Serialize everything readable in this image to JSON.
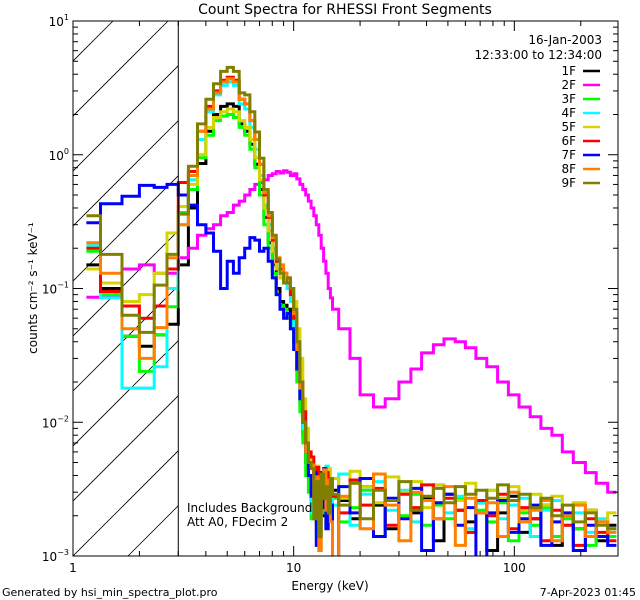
{
  "chart_data": {
    "type": "line",
    "title": "Count Spectra for RHESSI Front Segments",
    "xlabel": "Energy (keV)",
    "ylabel": "counts cm⁻² s⁻¹ keV⁻¹",
    "xscale": "log",
    "yscale": "log",
    "xlim": [
      1,
      295
    ],
    "ylim": [
      0.001,
      10
    ],
    "x_tick_labels": [
      "1",
      "10",
      "100"
    ],
    "x_ticks": [
      1,
      10,
      100
    ],
    "y_ticks": [
      0.001,
      0.01,
      0.1,
      1,
      10
    ],
    "y_tick_labels": [
      {
        "base": "10",
        "exp": "−3"
      },
      {
        "base": "10",
        "exp": "−2"
      },
      {
        "base": "10",
        "exp": "−1"
      },
      {
        "base": "10",
        "exp": "0"
      },
      {
        "base": "10",
        "exp": "1"
      }
    ],
    "grid": false,
    "legend_placement": "top-right",
    "legend_header": [
      "16-Jan-2003",
      "12:33:00 to 12:34:00"
    ],
    "annotations": [
      "Includes Background",
      "Att A0, FDecim 2"
    ],
    "shaded_region": {
      "style": "hatched",
      "from": 1,
      "to": 3
    },
    "bin_edges": [
      1.15,
      1.333,
      1.667,
      2.0,
      2.333,
      2.667,
      3.0,
      3.333,
      3.667,
      4.0,
      4.333,
      4.667,
      5.0,
      5.333,
      5.667,
      6.0,
      6.333,
      6.667,
      7.0,
      7.333,
      7.667,
      8.0,
      8.333,
      8.667,
      9.0,
      9.333,
      9.667,
      10.0,
      10.333,
      10.667,
      11.0,
      11.333,
      11.667,
      12.0,
      12.333,
      12.667,
      13.0,
      13.333,
      13.667,
      14.0,
      14.333,
      14.667,
      15.0,
      16,
      18,
      20,
      23,
      26,
      30,
      34,
      38,
      43,
      48,
      54,
      60,
      67,
      75,
      84,
      94,
      105,
      118,
      132,
      148,
      165,
      185,
      210,
      235,
      265,
      290
    ],
    "series": [
      {
        "name": "1F",
        "color": "#000000",
        "values": [
          0.15,
          0.1,
          0.044,
          0.037,
          0.045,
          0.054,
          0.15,
          0.4,
          0.86,
          1.5,
          2.0,
          2.3,
          2.4,
          2.3,
          1.7,
          1.5,
          1.2,
          0.85,
          0.55,
          0.34,
          0.22,
          0.15,
          0.1,
          0.08,
          0.075,
          0.07,
          0.06,
          0.04,
          0.025,
          0.014,
          0.008,
          0.005,
          0.004,
          0.0025,
          0.004,
          0.0018,
          0.0035,
          0.0042,
          0.002,
          0.003,
          0.0038,
          0.0022,
          0.0031,
          0.0026,
          0.0019,
          0.0033,
          0.0024,
          0.0016,
          0.003,
          0.0021,
          0.0027,
          0.0013,
          0.0029,
          0.0022,
          0.0018,
          0.0025,
          0.0011,
          0.0021,
          0.0028,
          0.0015,
          0.0019,
          0.0024,
          0.0012,
          0.002,
          0.0016,
          0.0022,
          0.0013,
          0.0017
        ]
      },
      {
        "name": "2F",
        "color": "#ff00ff",
        "values": [
          0.086,
          0.086,
          0.14,
          0.15,
          0.13,
          0.13,
          0.17,
          0.2,
          0.25,
          0.28,
          0.3,
          0.35,
          0.37,
          0.42,
          0.45,
          0.5,
          0.55,
          0.6,
          0.62,
          0.65,
          0.7,
          0.72,
          0.75,
          0.73,
          0.76,
          0.74,
          0.7,
          0.72,
          0.66,
          0.6,
          0.55,
          0.5,
          0.45,
          0.4,
          0.35,
          0.3,
          0.25,
          0.2,
          0.16,
          0.13,
          0.1,
          0.085,
          0.07,
          0.05,
          0.03,
          0.016,
          0.013,
          0.015,
          0.02,
          0.025,
          0.033,
          0.038,
          0.042,
          0.04,
          0.036,
          0.03,
          0.026,
          0.02,
          0.016,
          0.013,
          0.011,
          0.009,
          0.008,
          0.006,
          0.005,
          0.0042,
          0.0035,
          0.003
        ]
      },
      {
        "name": "3F",
        "color": "#00ff00",
        "values": [
          0.19,
          0.09,
          0.044,
          0.024,
          0.045,
          0.073,
          0.37,
          0.55,
          0.95,
          1.4,
          1.8,
          1.95,
          2.0,
          1.9,
          1.6,
          1.4,
          1.1,
          0.8,
          0.5,
          0.3,
          0.2,
          0.13,
          0.09,
          0.075,
          0.07,
          0.06,
          0.05,
          0.035,
          0.02,
          0.012,
          0.007,
          0.004,
          0.003,
          0.0019,
          0.0032,
          0.0015,
          0.0028,
          0.0036,
          0.0021,
          0.0017,
          0.003,
          0.0024,
          0.0027,
          0.0018,
          0.0023,
          0.0031,
          0.0014,
          0.0026,
          0.002,
          0.0029,
          0.0017,
          0.0024,
          0.0019,
          0.0027,
          0.0015,
          0.0022,
          0.0018,
          0.0025,
          0.0013,
          0.0021,
          0.0017,
          0.0023,
          0.0014,
          0.0019,
          0.0016,
          0.0012,
          0.0018,
          0.0014
        ]
      },
      {
        "name": "4F",
        "color": "#00ffff",
        "values": [
          0.21,
          0.085,
          0.018,
          0.018,
          0.026,
          0.1,
          0.3,
          0.65,
          1.3,
          2.1,
          2.8,
          3.3,
          3.5,
          3.3,
          2.4,
          2.2,
          1.6,
          1.1,
          0.7,
          0.42,
          0.3,
          0.2,
          0.14,
          0.12,
          0.11,
          0.1,
          0.08,
          0.05,
          0.03,
          0.016,
          0.009,
          0.006,
          0.004,
          0.0021,
          0.0044,
          0.0026,
          0.0016,
          0.0039,
          0.0028,
          0.0047,
          0.0019,
          0.0033,
          0.0024,
          0.0041,
          0.0017,
          0.0029,
          0.0036,
          0.0022,
          0.0031,
          0.0018,
          0.0026,
          0.0034,
          0.0021,
          0.0028,
          0.0016,
          0.0025,
          0.0031,
          0.0019,
          0.0024,
          0.0027,
          0.0014,
          0.0022,
          0.0026,
          0.0017,
          0.0021,
          0.0015,
          0.0019,
          0.0016
        ]
      },
      {
        "name": "5F",
        "color": "#d4d400",
        "values": [
          0.14,
          0.11,
          0.08,
          0.09,
          0.13,
          0.26,
          0.41,
          0.6,
          1.0,
          1.6,
          1.9,
          2.1,
          2.2,
          2.1,
          1.8,
          1.6,
          1.3,
          0.95,
          0.65,
          0.4,
          0.27,
          0.19,
          0.14,
          0.12,
          0.11,
          0.11,
          0.1,
          0.08,
          0.05,
          0.03,
          0.015,
          0.009,
          0.006,
          0.0052,
          0.0038,
          0.0047,
          0.0029,
          0.0041,
          0.0035,
          0.0024,
          0.0045,
          0.0031,
          0.0038,
          0.0027,
          0.0043,
          0.0033,
          0.0025,
          0.0039,
          0.003,
          0.0036,
          0.0023,
          0.0034,
          0.0029,
          0.0026,
          0.0035,
          0.0021,
          0.0031,
          0.0027,
          0.0033,
          0.0022,
          0.0029,
          0.0024,
          0.0028,
          0.002,
          0.0025,
          0.0022,
          0.0018,
          0.0021
        ]
      },
      {
        "name": "6F",
        "color": "#ff0000",
        "values": [
          0.2,
          0.095,
          0.074,
          0.06,
          0.074,
          0.14,
          0.62,
          0.75,
          1.5,
          2.3,
          3.0,
          3.6,
          3.8,
          3.6,
          2.6,
          2.4,
          1.8,
          1.3,
          0.85,
          0.5,
          0.34,
          0.23,
          0.16,
          0.14,
          0.13,
          0.11,
          0.09,
          0.06,
          0.035,
          0.02,
          0.012,
          0.007,
          0.006,
          0.0055,
          0.0031,
          0.0046,
          0.0022,
          0.0038,
          0.0027,
          0.0042,
          0.0019,
          0.0035,
          0.0028,
          0.0021,
          0.0037,
          0.0024,
          0.0032,
          0.0017,
          0.0029,
          0.0023,
          0.0034,
          0.0019,
          0.0027,
          0.0022,
          0.0015,
          0.0026,
          0.002,
          0.0029,
          0.0016,
          0.0023,
          0.0019,
          0.0013,
          0.0022,
          0.0017,
          0.0012,
          0.0019,
          0.0015,
          0.0013
        ]
      },
      {
        "name": "7F",
        "color": "#0000ff",
        "values": [
          0.31,
          0.43,
          0.49,
          0.59,
          0.57,
          0.6,
          0.5,
          0.42,
          0.3,
          0.26,
          0.19,
          0.1,
          0.16,
          0.13,
          0.17,
          0.2,
          0.24,
          0.23,
          0.19,
          0.2,
          0.16,
          0.12,
          0.09,
          0.07,
          0.06,
          0.065,
          0.05,
          0.035,
          0.025,
          0.015,
          0.01,
          0.006,
          0.004,
          0.0028,
          0.0042,
          0.0012,
          0.0036,
          0.0023,
          0.0045,
          0.0016,
          0.0031,
          0.0024,
          0.0008,
          0.0033,
          0.0021,
          0.0038,
          0.0014,
          0.0027,
          0.0019,
          0.0032,
          0.0011,
          0.0025,
          0.0029,
          0.0017,
          0.0023,
          0.0009,
          0.0021,
          0.0026,
          0.0015,
          0.0019,
          0.0024,
          0.0012,
          0.0018,
          0.0021,
          0.0011,
          0.0017,
          0.0014,
          0.0012
        ]
      },
      {
        "name": "8F",
        "color": "#ff8000",
        "values": [
          0.22,
          0.13,
          0.05,
          0.03,
          0.051,
          0.17,
          0.3,
          0.7,
          1.5,
          2.2,
          2.9,
          3.5,
          3.7,
          3.5,
          2.6,
          2.4,
          1.8,
          1.3,
          0.85,
          0.52,
          0.35,
          0.24,
          0.17,
          0.15,
          0.13,
          0.12,
          0.1,
          0.065,
          0.035,
          0.018,
          0.01,
          0.006,
          0.005,
          0.0048,
          0.0026,
          0.0039,
          0.0011,
          0.0034,
          0.0044,
          0.0022,
          0.0037,
          0.0018,
          0.0009,
          0.0028,
          0.0035,
          0.0016,
          0.0041,
          0.0024,
          0.0013,
          0.003,
          0.0026,
          0.0019,
          0.0033,
          0.0012,
          0.0027,
          0.0021,
          0.0025,
          0.0014,
          0.003,
          0.0018,
          0.0022,
          0.0026,
          0.0013,
          0.002,
          0.0024,
          0.0014,
          0.0018,
          0.0015
        ]
      },
      {
        "name": "9F",
        "color": "#808000",
        "values": [
          0.35,
          0.18,
          0.063,
          0.047,
          0.106,
          0.18,
          0.36,
          0.82,
          1.7,
          2.6,
          3.4,
          4.2,
          4.5,
          4.2,
          2.9,
          2.8,
          2.1,
          1.48,
          0.94,
          0.55,
          0.37,
          0.25,
          0.166,
          0.13,
          0.11,
          0.12,
          0.1,
          0.07,
          0.04,
          0.02,
          0.01,
          0.007,
          0.005,
          0.0045,
          0.0019,
          0.0036,
          0.0014,
          0.0041,
          0.0027,
          0.0033,
          0.0021,
          0.0038,
          0.0029,
          0.0024,
          0.0035,
          0.0019,
          0.0031,
          0.0026,
          0.0036,
          0.0022,
          0.0028,
          0.0032,
          0.0025,
          0.0033,
          0.0029,
          0.0031,
          0.0027,
          0.0034,
          0.0026,
          0.0029,
          0.0023,
          0.0027,
          0.002,
          0.0024,
          0.0018,
          0.0021,
          0.0017,
          0.0016
        ]
      }
    ]
  },
  "footer": {
    "generated": "Generated by hsi_min_spectra_plot.pro",
    "date": "7-Apr-2023 01:45"
  }
}
